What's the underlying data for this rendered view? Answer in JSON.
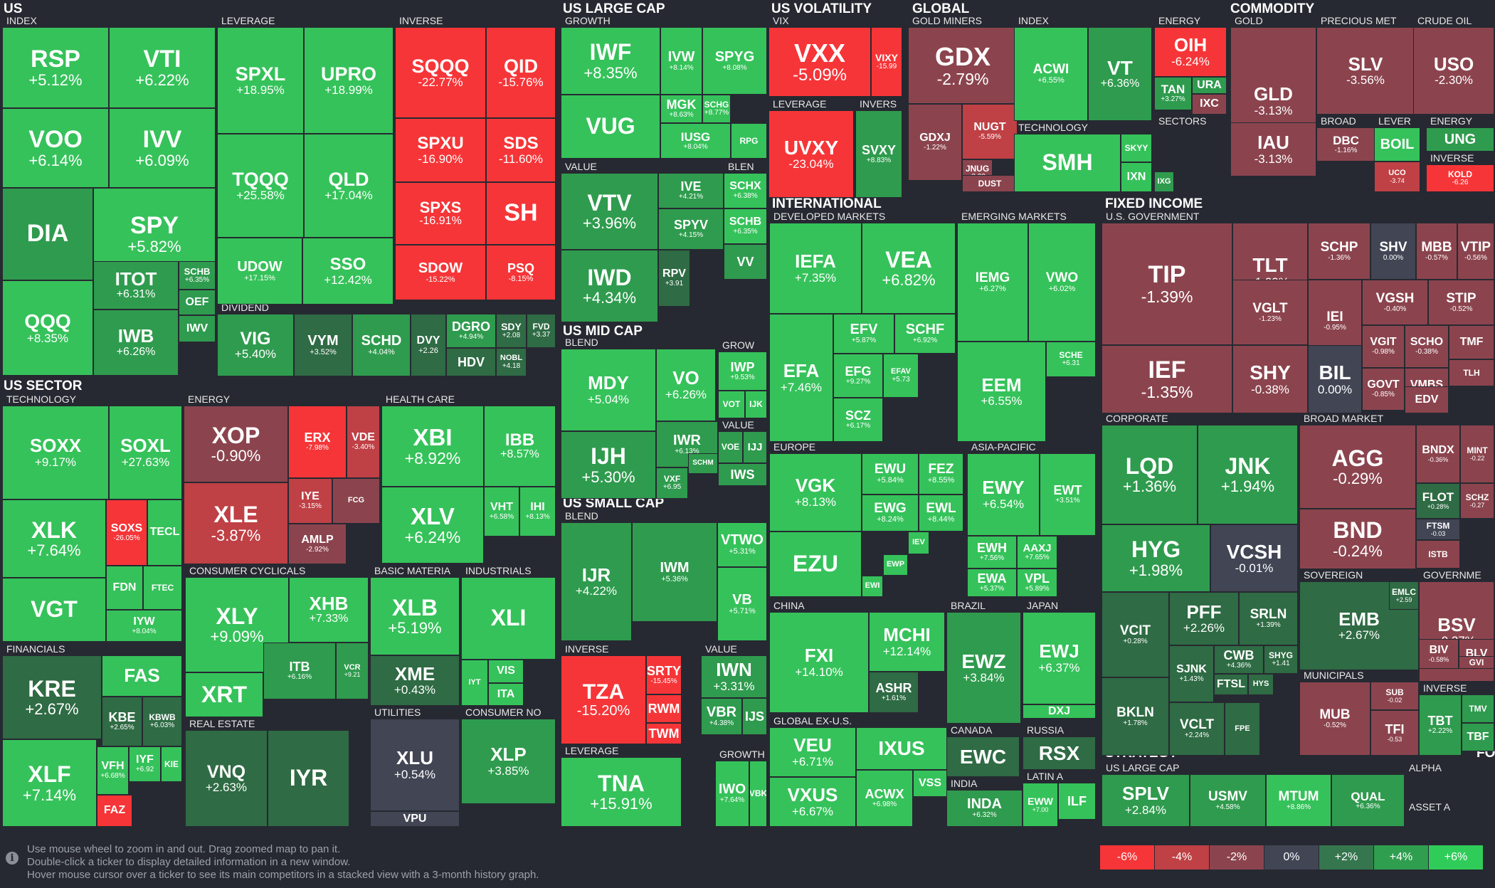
{
  "sections": {
    "us": "US",
    "us_sector": "US SECTOR",
    "us_large_cap": "US LARGE CAP",
    "us_mid_cap": "US MID CAP",
    "us_small_cap": "US SMALL CAP",
    "us_volatility": "US VOLATILITY",
    "global": "GLOBAL",
    "commodity": "COMMODITY",
    "international": "INTERNATIONAL",
    "fixed_income": "FIXED INCOME",
    "strategy": "STRATEGY",
    "fo": "FO"
  },
  "groups": {
    "index": "INDEX",
    "leverage": "LEVERAGE",
    "inverse": "INVERSE",
    "dividend": "DIVIDEND",
    "technology": "TECHNOLOGY",
    "energy": "ENERGY",
    "health_care": "HEALTH CARE",
    "financials": "FINANCIALS",
    "consumer_cyclicals": "CONSUMER CYCLICALS",
    "basic_materia": "BASIC MATERIA",
    "industrials": "INDUSTRIALS",
    "real_estate": "REAL ESTATE",
    "utilities": "UTILITIES",
    "consumer_no": "CONSUMER NO",
    "growth": "GROWTH",
    "value": "VALUE",
    "blen": "BLEN",
    "blend": "BLEND",
    "grow": "GROW",
    "vix": "VIX",
    "invers": "INVERS",
    "gold_miners": "GOLD MINERS",
    "sectors": "SECTORS",
    "gold": "GOLD",
    "precious_met": "PRECIOUS MET",
    "crude_oil": "CRUDE OIL",
    "broad": "BROAD",
    "lever": "LEVER",
    "developed_markets": "DEVELOPED MARKETS",
    "emerging_markets": "EMERGING MARKETS",
    "europe": "EUROPE",
    "asia_pacific": "ASIA-PACIFIC",
    "china": "CHINA",
    "brazil": "BRAZIL",
    "japan": "JAPAN",
    "global_ex_us": "GLOBAL EX-U.S.",
    "canada": "CANADA",
    "russia": "RUSSIA",
    "india": "INDIA",
    "latin_a": "LATIN A",
    "us_government": "U.S. GOVERNMENT",
    "corporate": "CORPORATE",
    "broad_market": "BROAD MARKET",
    "sovereign": "SOVEREIGN",
    "governme": "GOVERNME",
    "municipals": "MUNICIPALS",
    "us_large_cap_s": "US LARGE CAP",
    "alpha": "ALPHA",
    "asset_a": "ASSET A"
  },
  "colors": {
    "g6": "#30cc5a",
    "g4": "#2f9e4f",
    "g2": "#35764e",
    "flat": "#414554",
    "r2": "#8b444e",
    "r4": "#bf4045",
    "r6": "#f63538",
    "vg": "#35c25a",
    "mg": "#2f9b4e",
    "dg": "#2f6b44"
  },
  "footer": {
    "info_icon": "info-icon",
    "hint_1": "Use mouse wheel to zoom in and out. Drag zoomed map to pan it.",
    "hint_2": "Double-click a ticker to display detailed information in a new window.",
    "hint_3": "Hover mouse cursor over a ticker to see its main competitors in a stacked view with a 3-month history graph.",
    "legend": [
      "-6%",
      "-4%",
      "-2%",
      "0%",
      "+2%",
      "+4%",
      "+6%"
    ]
  },
  "tickers": [
    {
      "s": "RSP",
      "p": "+5.12%"
    },
    {
      "s": "VTI",
      "p": "+6.22%"
    },
    {
      "s": "VOO",
      "p": "+6.14%"
    },
    {
      "s": "IVV",
      "p": "+6.09%"
    },
    {
      "s": "DIA",
      "p": ""
    },
    {
      "s": "SPY",
      "p": "+5.82%"
    },
    {
      "s": "QQQ",
      "p": "+8.35%"
    },
    {
      "s": "ITOT",
      "p": "+6.31%"
    },
    {
      "s": "SCHB",
      "p": "+6.35%"
    },
    {
      "s": "OEF",
      "p": ""
    },
    {
      "s": "IWB",
      "p": "+6.26%"
    },
    {
      "s": "IWV",
      "p": ""
    },
    {
      "s": "SPXL",
      "p": "+18.95%"
    },
    {
      "s": "UPRO",
      "p": "+18.99%"
    },
    {
      "s": "TQQQ",
      "p": "+25.58%"
    },
    {
      "s": "QLD",
      "p": "+17.04%"
    },
    {
      "s": "UDOW",
      "p": "+17.15%"
    },
    {
      "s": "SSO",
      "p": "+12.42%"
    },
    {
      "s": "SQQQ",
      "p": "-22.77%"
    },
    {
      "s": "QID",
      "p": "-15.76%"
    },
    {
      "s": "SPXU",
      "p": "-16.90%"
    },
    {
      "s": "SDS",
      "p": "-11.60%"
    },
    {
      "s": "SPXS",
      "p": "-16.91%"
    },
    {
      "s": "SH",
      "p": ""
    },
    {
      "s": "SDOW",
      "p": "-15.22%"
    },
    {
      "s": "PSQ",
      "p": "-8.15%"
    },
    {
      "s": "VIG",
      "p": "+5.40%"
    },
    {
      "s": "VYM",
      "p": "+3.52%"
    },
    {
      "s": "SCHD",
      "p": "+4.04%"
    },
    {
      "s": "DVY",
      "p": "+2.26"
    },
    {
      "s": "DGRO",
      "p": "+4.94%"
    },
    {
      "s": "SDY",
      "p": "+2.08"
    },
    {
      "s": "FVD",
      "p": "+3.37"
    },
    {
      "s": "HDV",
      "p": ""
    },
    {
      "s": "NOBL",
      "p": "+4.18"
    },
    {
      "s": "SOXX",
      "p": "+9.17%"
    },
    {
      "s": "SOXL",
      "p": "+27.63%"
    },
    {
      "s": "XLK",
      "p": "+7.64%"
    },
    {
      "s": "SOXS",
      "p": "-26.05%"
    },
    {
      "s": "TECL",
      "p": ""
    },
    {
      "s": "VGT",
      "p": ""
    },
    {
      "s": "FDN",
      "p": ""
    },
    {
      "s": "FTEC",
      "p": ""
    },
    {
      "s": "IYW",
      "p": "+8.04%"
    },
    {
      "s": "XOP",
      "p": "-0.90%"
    },
    {
      "s": "ERX",
      "p": "-7.98%"
    },
    {
      "s": "VDE",
      "p": "-3.40%"
    },
    {
      "s": "XLE",
      "p": "-3.87%"
    },
    {
      "s": "IYE",
      "p": "-3.15%"
    },
    {
      "s": "FCG",
      "p": ""
    },
    {
      "s": "AMLP",
      "p": "-2.92%"
    },
    {
      "s": "XBI",
      "p": "+8.92%"
    },
    {
      "s": "IBB",
      "p": "+8.57%"
    },
    {
      "s": "XLV",
      "p": "+6.24%"
    },
    {
      "s": "VHT",
      "p": "+6.58%"
    },
    {
      "s": "IHI",
      "p": "+8.13%"
    },
    {
      "s": "KRE",
      "p": "+2.67%"
    },
    {
      "s": "FAS",
      "p": ""
    },
    {
      "s": "KBE",
      "p": "+2.65%"
    },
    {
      "s": "KBWB",
      "p": "+6.03%"
    },
    {
      "s": "XLF",
      "p": "+7.14%"
    },
    {
      "s": "VFH",
      "p": "+6.68%"
    },
    {
      "s": "IYF",
      "p": "+6.92"
    },
    {
      "s": "KIE",
      "p": ""
    },
    {
      "s": "FAZ",
      "p": ""
    },
    {
      "s": "XLY",
      "p": "+9.09%"
    },
    {
      "s": "XHB",
      "p": "+7.33%"
    },
    {
      "s": "XRT",
      "p": ""
    },
    {
      "s": "ITB",
      "p": "+6.16%"
    },
    {
      "s": "VCR",
      "p": "+9.21"
    },
    {
      "s": "XLB",
      "p": "+5.19%"
    },
    {
      "s": "XME",
      "p": "+0.43%"
    },
    {
      "s": "XLI",
      "p": ""
    },
    {
      "s": "IYT",
      "p": ""
    },
    {
      "s": "VIS",
      "p": ""
    },
    {
      "s": "ITA",
      "p": ""
    },
    {
      "s": "VNQ",
      "p": "+2.63%"
    },
    {
      "s": "IYR",
      "p": ""
    },
    {
      "s": "XLU",
      "p": "+0.54%"
    },
    {
      "s": "VPU",
      "p": ""
    },
    {
      "s": "XLP",
      "p": "+3.85%"
    },
    {
      "s": "IWF",
      "p": "+8.35%"
    },
    {
      "s": "IVW",
      "p": "+8.14%"
    },
    {
      "s": "SPYG",
      "p": "+8.08%"
    },
    {
      "s": "VUG",
      "p": ""
    },
    {
      "s": "MGK",
      "p": "+8.63%"
    },
    {
      "s": "SCHG",
      "p": "+8.77%"
    },
    {
      "s": "IUSG",
      "p": "+8.04%"
    },
    {
      "s": "RPG",
      "p": ""
    },
    {
      "s": "VTV",
      "p": "+3.96%"
    },
    {
      "s": "IVE",
      "p": "+4.21%"
    },
    {
      "s": "SCHX",
      "p": "+6.38%"
    },
    {
      "s": "SPYV",
      "p": "+4.15%"
    },
    {
      "s": "SCHB",
      "p": "+6.35%"
    },
    {
      "s": "IWD",
      "p": "+4.34%"
    },
    {
      "s": "RPV",
      "p": "+3.91"
    },
    {
      "s": "VV",
      "p": ""
    },
    {
      "s": "MDY",
      "p": "+5.04%"
    },
    {
      "s": "VO",
      "p": "+6.26%"
    },
    {
      "s": "IWP",
      "p": "+9.53%"
    },
    {
      "s": "IJK",
      "p": ""
    },
    {
      "s": "VOT",
      "p": ""
    },
    {
      "s": "IWR",
      "p": "+6.13%"
    },
    {
      "s": "IJH",
      "p": "+5.30%"
    },
    {
      "s": "VOE",
      "p": ""
    },
    {
      "s": "IJJ",
      "p": ""
    },
    {
      "s": "VXF",
      "p": "+6.95"
    },
    {
      "s": "SCHM",
      "p": ""
    },
    {
      "s": "IWS",
      "p": ""
    },
    {
      "s": "IJR",
      "p": "+4.22%"
    },
    {
      "s": "IWM",
      "p": "+5.36%"
    },
    {
      "s": "VTWO",
      "p": "+5.31%"
    },
    {
      "s": "SCHA",
      "p": "+5.62"
    },
    {
      "s": "VB",
      "p": "+5.71%"
    },
    {
      "s": "TZA",
      "p": "-15.20%"
    },
    {
      "s": "SRTY",
      "p": "-15.45%"
    },
    {
      "s": "RWM",
      "p": ""
    },
    {
      "s": "TWM",
      "p": ""
    },
    {
      "s": "IWN",
      "p": "+3.31%"
    },
    {
      "s": "VBR",
      "p": "+4.38%"
    },
    {
      "s": "IJS",
      "p": ""
    },
    {
      "s": "TNA",
      "p": "+15.91%"
    },
    {
      "s": "IWO",
      "p": "+7.64%"
    },
    {
      "s": "VBK",
      "p": ""
    },
    {
      "s": "VXX",
      "p": "-5.09%"
    },
    {
      "s": "VIXY",
      "p": "-15.99"
    },
    {
      "s": "UVXY",
      "p": "-23.04%"
    },
    {
      "s": "SVXY",
      "p": "+8.83%"
    },
    {
      "s": "GDX",
      "p": "-2.79%"
    },
    {
      "s": "GDXJ",
      "p": "-1.22%"
    },
    {
      "s": "NUGT",
      "p": "-5.59%"
    },
    {
      "s": "JNUG",
      "p": "-3.29"
    },
    {
      "s": "DUST",
      "p": ""
    },
    {
      "s": "ACWI",
      "p": "+6.55%"
    },
    {
      "s": "VT",
      "p": "+6.36%"
    },
    {
      "s": "SMH",
      "p": ""
    },
    {
      "s": "SKYY",
      "p": ""
    },
    {
      "s": "IXN",
      "p": ""
    },
    {
      "s": "OIH",
      "p": "-6.24%"
    },
    {
      "s": "TAN",
      "p": "+3.27%"
    },
    {
      "s": "URA",
      "p": ""
    },
    {
      "s": "IXC",
      "p": ""
    },
    {
      "s": "IXG",
      "p": ""
    },
    {
      "s": "GLD",
      "p": "-3.13%"
    },
    {
      "s": "SLV",
      "p": "-3.56%"
    },
    {
      "s": "USO",
      "p": "-2.30%"
    },
    {
      "s": "IAU",
      "p": "-3.13%"
    },
    {
      "s": "DBC",
      "p": "-1.16%"
    },
    {
      "s": "BOIL",
      "p": ""
    },
    {
      "s": "UNG",
      "p": ""
    },
    {
      "s": "UCO",
      "p": "-3.74"
    },
    {
      "s": "KOLD",
      "p": "-6.26"
    },
    {
      "s": "IEFA",
      "p": "+7.35%"
    },
    {
      "s": "VEA",
      "p": "+6.82%"
    },
    {
      "s": "EFA",
      "p": "+7.46%"
    },
    {
      "s": "EFV",
      "p": "+5.87%"
    },
    {
      "s": "SCHF",
      "p": "+6.92%"
    },
    {
      "s": "EFG",
      "p": "+9.27%"
    },
    {
      "s": "EFAV",
      "p": "+5.73"
    },
    {
      "s": "SCZ",
      "p": "+6.17%"
    },
    {
      "s": "IEMG",
      "p": "+6.27%"
    },
    {
      "s": "VWO",
      "p": "+6.02%"
    },
    {
      "s": "SCHE",
      "p": "+6.31"
    },
    {
      "s": "EEM",
      "p": "+6.55%"
    },
    {
      "s": "VGK",
      "p": "+8.13%"
    },
    {
      "s": "EWU",
      "p": "+5.84%"
    },
    {
      "s": "FEZ",
      "p": "+8.55%"
    },
    {
      "s": "EWG",
      "p": "+8.24%"
    },
    {
      "s": "EWL",
      "p": "+8.44%"
    },
    {
      "s": "EZU",
      "p": ""
    },
    {
      "s": "IEV",
      "p": ""
    },
    {
      "s": "EWP",
      "p": ""
    },
    {
      "s": "EWI",
      "p": ""
    },
    {
      "s": "EWY",
      "p": "+6.54%"
    },
    {
      "s": "EWT",
      "p": "+3.51%"
    },
    {
      "s": "EWH",
      "p": "+7.56%"
    },
    {
      "s": "AAXJ",
      "p": "+7.65%"
    },
    {
      "s": "EWA",
      "p": "+5.37%"
    },
    {
      "s": "VPL",
      "p": "+5.89%"
    },
    {
      "s": "FXI",
      "p": "+14.10%"
    },
    {
      "s": "MCHI",
      "p": "+12.14%"
    },
    {
      "s": "ASHR",
      "p": "+1.61%"
    },
    {
      "s": "EWZ",
      "p": "+3.84%"
    },
    {
      "s": "EWJ",
      "p": "+6.37%"
    },
    {
      "s": "DXJ",
      "p": ""
    },
    {
      "s": "VEU",
      "p": "+6.71%"
    },
    {
      "s": "IXUS",
      "p": ""
    },
    {
      "s": "VXUS",
      "p": "+6.67%"
    },
    {
      "s": "ACWX",
      "p": "+6.98%"
    },
    {
      "s": "VSS",
      "p": ""
    },
    {
      "s": "EWC",
      "p": ""
    },
    {
      "s": "RSX",
      "p": ""
    },
    {
      "s": "INDA",
      "p": "+6.32%"
    },
    {
      "s": "EWW",
      "p": "+7.00"
    },
    {
      "s": "ILF",
      "p": ""
    },
    {
      "s": "TIP",
      "p": "-1.39%"
    },
    {
      "s": "TLT",
      "p": "-1.09%"
    },
    {
      "s": "SCHP",
      "p": "-1.36%"
    },
    {
      "s": "SHV",
      "p": "0.00%"
    },
    {
      "s": "MBB",
      "p": "-0.57%"
    },
    {
      "s": "VTIP",
      "p": "-0.56%"
    },
    {
      "s": "VGLT",
      "p": "-1.23%"
    },
    {
      "s": "IEI",
      "p": "-0.95%"
    },
    {
      "s": "VGSH",
      "p": "-0.40%"
    },
    {
      "s": "STIP",
      "p": "-0.52%"
    },
    {
      "s": "IEF",
      "p": "-1.35%"
    },
    {
      "s": "SHY",
      "p": "-0.38%"
    },
    {
      "s": "BIL",
      "p": "0.00%"
    },
    {
      "s": "VGIT",
      "p": "-0.98%"
    },
    {
      "s": "SCHO",
      "p": "-0.38%"
    },
    {
      "s": "GOVT",
      "p": "-0.85%"
    },
    {
      "s": "VMBS",
      "p": "-0.59%"
    },
    {
      "s": "TMF",
      "p": ""
    },
    {
      "s": "TLH",
      "p": ""
    },
    {
      "s": "EDV",
      "p": ""
    },
    {
      "s": "LQD",
      "p": "+1.36%"
    },
    {
      "s": "JNK",
      "p": "+1.94%"
    },
    {
      "s": "HYG",
      "p": "+1.98%"
    },
    {
      "s": "VCSH",
      "p": "-0.01%"
    },
    {
      "s": "VCIT",
      "p": "+0.28%"
    },
    {
      "s": "PFF",
      "p": "+2.26%"
    },
    {
      "s": "SRLN",
      "p": "+1.39%"
    },
    {
      "s": "SJNK",
      "p": "+1.43%"
    },
    {
      "s": "CWB",
      "p": "+4.36%"
    },
    {
      "s": "SHYG",
      "p": "+1.41"
    },
    {
      "s": "FTSL",
      "p": ""
    },
    {
      "s": "HYS",
      "p": ""
    },
    {
      "s": "BKLN",
      "p": "+1.78%"
    },
    {
      "s": "VCLT",
      "p": "+2.24%"
    },
    {
      "s": "FPE",
      "p": ""
    },
    {
      "s": "AGG",
      "p": "-0.29%"
    },
    {
      "s": "BNDX",
      "p": "-0.36%"
    },
    {
      "s": "MINT",
      "p": "-0.22"
    },
    {
      "s": "BND",
      "p": "-0.24%"
    },
    {
      "s": "FLOT",
      "p": "+0.28%"
    },
    {
      "s": "SCHZ",
      "p": "-0.27"
    },
    {
      "s": "FTSM",
      "p": "-0.03"
    },
    {
      "s": "ISTB",
      "p": ""
    },
    {
      "s": "EMB",
      "p": "+2.67%"
    },
    {
      "s": "EMLC",
      "p": "+2.59"
    },
    {
      "s": "BSV",
      "p": "-0.37%"
    },
    {
      "s": "BIV",
      "p": "-0.58%"
    },
    {
      "s": "BLV",
      "p": ""
    },
    {
      "s": "GVI",
      "p": ""
    },
    {
      "s": "MUB",
      "p": "-0.52%"
    },
    {
      "s": "SUB",
      "p": "-0.02"
    },
    {
      "s": "TFI",
      "p": "-0.53"
    },
    {
      "s": "TBT",
      "p": "+2.22%"
    },
    {
      "s": "TMV",
      "p": ""
    },
    {
      "s": "TBF",
      "p": ""
    },
    {
      "s": "SPLV",
      "p": "+2.84%"
    },
    {
      "s": "USMV",
      "p": "+4.58%"
    },
    {
      "s": "MTUM",
      "p": "+8.86%"
    },
    {
      "s": "QUAL",
      "p": "+6.36%"
    }
  ]
}
